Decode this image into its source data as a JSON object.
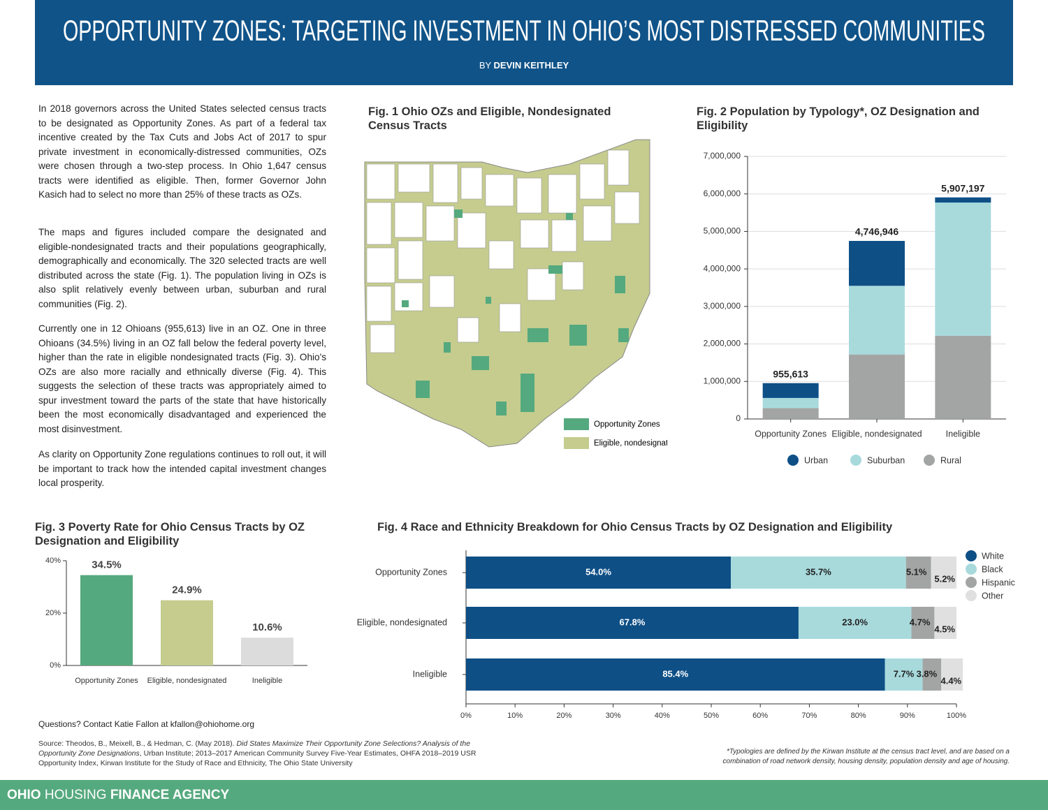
{
  "header": {
    "title": "OPPORTUNITY ZONES: TARGETING INVESTMENT IN OHIO’S MOST DISTRESSED COMMUNITIES",
    "byline_prefix": "BY",
    "author": "DEVIN KEITHLEY"
  },
  "paragraphs": [
    "In 2018 governors across the United States selected census tracts to be designated as Opportunity Zones. As part of a federal tax incentive created by the Tax Cuts and Jobs Act of 2017 to spur private investment in economically-distressed communities, OZs were chosen through a two-step process. In Ohio 1,647 census tracts were identified as eligible. Then, former Governor John Kasich had to select no more than 25% of these tracts as OZs.",
    "The maps and figures included compare the designated and eligible-nondesignated tracts and their populations geographically, demographically and economically. The 320 selected tracts are well distributed across the state (Fig. 1). The population living in OZs is also split relatively evenly between urban, suburban and rural communities (Fig. 2).",
    "Currently one in 12 Ohioans (955,613) live in an OZ. One in three Ohioans (34.5%) living in an OZ fall below the federal poverty level, higher than the rate in eligible nondesignated tracts (Fig. 3). Ohio's OZs are also more racially and ethnically diverse (Fig. 4). This suggests the selection of these tracts was appropriately aimed to spur investment toward the parts of the state that have historically been the most economically disadvantaged and experienced the most disinvestment.",
    "As clarity on Opportunity Zone regulations continues to roll out, it will be important to track how the intended capital investment changes local prosperity."
  ],
  "map": {
    "title": "Fig. 1 Ohio OZs and Eligible, Nondesignated Census Tracts",
    "legend": [
      {
        "name": "Opportunity Zones",
        "color": "#55a97e"
      },
      {
        "name": "Eligible, nondesignated",
        "color": "#c5cc8e"
      }
    ]
  },
  "chart_data": [
    {
      "type": "bar",
      "stacked": true,
      "title": "Fig. 2 Population by Typology*, OZ Designation and Eligibility",
      "categories": [
        "Opportunity Zones",
        "Eligible, nondesignated",
        "Ineligible"
      ],
      "series": [
        {
          "name": "Urban",
          "color": "#0e4f86",
          "values": [
            395613,
            1196946,
            137197
          ]
        },
        {
          "name": "Suburban",
          "color": "#a8dadc",
          "values": [
            270000,
            1830000,
            3550000
          ]
        },
        {
          "name": "Rural",
          "color": "#a3a5a5",
          "values": [
            290000,
            1720000,
            2220000
          ]
        }
      ],
      "totals": [
        955613,
        4746946,
        5907197
      ],
      "total_labels": [
        "955,613",
        "4,746,946",
        "5,907,197"
      ],
      "ylim": [
        0,
        7000000
      ],
      "yticks": [
        0,
        {
          "value": 1000000,
          "label": "1,000,000"
        },
        {
          "value": 2000000,
          "label": "2,000,000"
        },
        {
          "value": 3000000,
          "label": "3,000,000"
        },
        {
          "value": 4000000,
          "label": "4,000,000"
        },
        {
          "value": 5000000,
          "label": "5,000,000"
        },
        {
          "value": 6000000,
          "label": "6,000,000"
        },
        {
          "value": 7000000,
          "label": "7,000,000"
        }
      ],
      "grid": true,
      "legend": "bottom"
    },
    {
      "type": "bar",
      "title": "Fig. 3 Poverty Rate for Ohio Census Tracts by OZ Designation and Eligibility",
      "categories": [
        "Opportunity Zones",
        "Eligible, nondesignated",
        "Ineligible"
      ],
      "values": [
        34.5,
        24.9,
        10.6
      ],
      "value_labels": [
        "34.5%",
        "24.9%",
        "10.6%"
      ],
      "colors": [
        "#55a97e",
        "#c5cc8e",
        "#dcdcdc"
      ],
      "ylim": [
        0,
        40
      ],
      "yticks": [
        {
          "value": 0,
          "label": "0%"
        },
        {
          "value": 20,
          "label": "20%"
        },
        {
          "value": 40,
          "label": "40%"
        }
      ]
    },
    {
      "type": "bar",
      "orientation": "horizontal",
      "stacked": true,
      "title": "Fig. 4 Race and Ethnicity Breakdown for Ohio Census Tracts by OZ Designation and Eligibility",
      "categories": [
        "Opportunity Zones",
        "Eligible, nondesignated",
        "Ineligible"
      ],
      "series": [
        {
          "name": "White",
          "color": "#0e4f86",
          "values": [
            54.0,
            67.8,
            85.4
          ],
          "value_labels": [
            "54.0%",
            "67.8%",
            "85.4%"
          ]
        },
        {
          "name": "Black",
          "color": "#a8dadc",
          "values": [
            35.7,
            23.0,
            7.7
          ],
          "value_labels": [
            "35.7%",
            "23.0%",
            "7.7%"
          ]
        },
        {
          "name": "Hispanic",
          "color": "#a3a5a5",
          "values": [
            5.1,
            4.7,
            3.8
          ],
          "value_labels": [
            "5.1%",
            "4.7%",
            "3.8%"
          ]
        },
        {
          "name": "Other",
          "color": "#e0e0e0",
          "values": [
            5.2,
            4.5,
            4.4
          ],
          "value_labels": [
            "5.2%",
            "4.5%",
            "4.4%"
          ]
        }
      ],
      "xlim": [
        0,
        100
      ],
      "xticks": [
        {
          "value": 0,
          "label": "0%"
        },
        {
          "value": 10,
          "label": "10%"
        },
        {
          "value": 20,
          "label": "20%"
        },
        {
          "value": 30,
          "label": "30%"
        },
        {
          "value": 40,
          "label": "40%"
        },
        {
          "value": 50,
          "label": "50%"
        },
        {
          "value": 60,
          "label": "60%"
        },
        {
          "value": 70,
          "label": "70%"
        },
        {
          "value": 80,
          "label": "80%"
        },
        {
          "value": 90,
          "label": "90%"
        },
        {
          "value": 100,
          "label": "100%"
        }
      ],
      "legend": "right"
    }
  ],
  "contact": "Questions? Contact Katie Fallon at kfallon@ohiohome.org",
  "source": {
    "lead": "Source: Theodos, B., Meixell, B., & Hedman, C. (May 2018).",
    "title": "Did States Maximize Their Opportunity Zone Selections? Analysis of the Opportunity Zone Designations",
    "rest": ", Urban Institute; 2013–2017 American Community Survey Five-Year Estimates, OHFA 2018–2019 USR Opportunity Index, Kirwan Institute for the Study of Race and Ethnicity, The Ohio State University"
  },
  "footnote": "*Typologies are defined by the Kirwan Institute at the census tract level, and are based on a combination of road network density, housing density, population density and age of housing.",
  "footer": {
    "brand_1": "OHIO",
    "brand_2": "HOUSING",
    "brand_3": "FINANCE AGENCY"
  }
}
